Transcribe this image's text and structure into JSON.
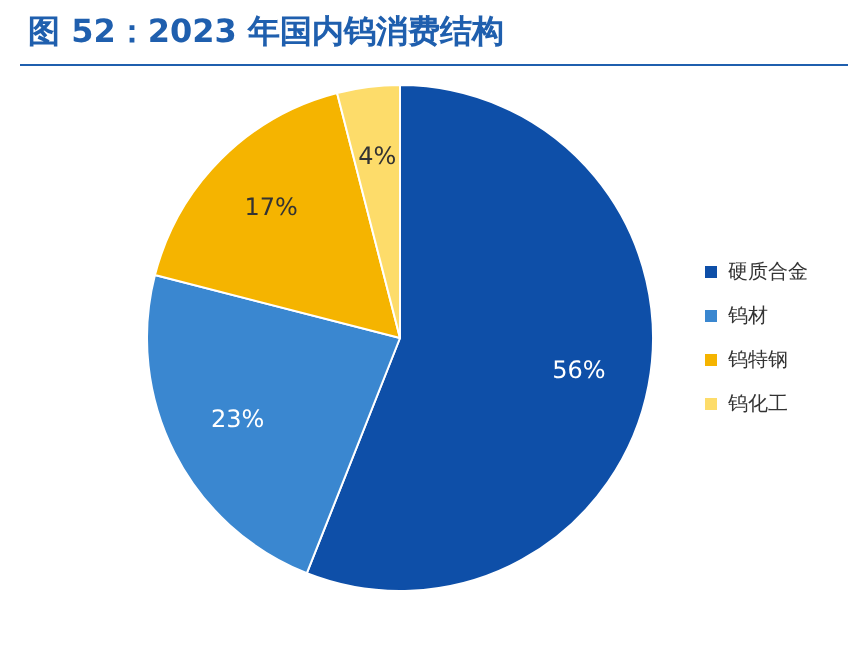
{
  "chart_data": {
    "type": "pie",
    "title": "图 52：2023 年国内钨消费结构",
    "categories": [
      "硬质合金",
      "钨材",
      "钨特钢",
      "钨化工"
    ],
    "values": [
      56,
      23,
      17,
      4
    ],
    "colors": [
      "#0e4fa8",
      "#3a87d0",
      "#f5b400",
      "#fddc6a"
    ],
    "value_labels": [
      "56%",
      "23%",
      "17%",
      "4%"
    ],
    "legend": "right"
  }
}
